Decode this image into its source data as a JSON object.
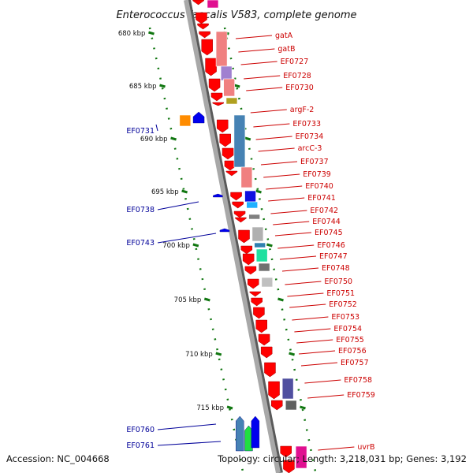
{
  "title": "Enterococcus faecalis V583, complete genome",
  "accession": "Accession: NC_004668",
  "topology": "Topology: circular; Length: 3,218,031 bp; Genes: 3,192",
  "colors": {
    "forward_gene": "#ff0000",
    "reverse_gene": "#0000ee",
    "tick": "#117711",
    "backbone": "#8c8c8c",
    "red_label": "#cc0000",
    "blue_label": "#000099"
  },
  "scale_ticks": [
    {
      "label": "680 kbp"
    },
    {
      "label": "685 kbp"
    },
    {
      "label": "690 kbp"
    },
    {
      "label": "695 kbp"
    },
    {
      "label": "700 kbp"
    },
    {
      "label": "705 kbp"
    },
    {
      "label": "710 kbp"
    },
    {
      "label": "715 kbp"
    }
  ],
  "forward_genes": [
    {
      "label": "gatA"
    },
    {
      "label": "gatB"
    },
    {
      "label": "EF0727"
    },
    {
      "label": "EF0728"
    },
    {
      "label": "EF0730"
    },
    {
      "label": "argF-2"
    },
    {
      "label": "EF0733"
    },
    {
      "label": "EF0734"
    },
    {
      "label": "arcC-3"
    },
    {
      "label": "EF0737"
    },
    {
      "label": "EF0739"
    },
    {
      "label": "EF0740"
    },
    {
      "label": "EF0741"
    },
    {
      "label": "EF0742"
    },
    {
      "label": "EF0744"
    },
    {
      "label": "EF0745"
    },
    {
      "label": "EF0746"
    },
    {
      "label": "EF0747"
    },
    {
      "label": "EF0748"
    },
    {
      "label": "EF0750"
    },
    {
      "label": "EF0751"
    },
    {
      "label": "EF0752"
    },
    {
      "label": "EF0753"
    },
    {
      "label": "EF0754"
    },
    {
      "label": "EF0755"
    },
    {
      "label": "EF0756"
    },
    {
      "label": "EF0757"
    },
    {
      "label": "EF0758"
    },
    {
      "label": "EF0759"
    },
    {
      "label": "uvrB"
    }
  ],
  "reverse_genes": [
    {
      "label": "EF0731"
    },
    {
      "label": "EF0738"
    },
    {
      "label": "EF0743"
    },
    {
      "label": "EF0760"
    },
    {
      "label": "EF0761"
    }
  ]
}
